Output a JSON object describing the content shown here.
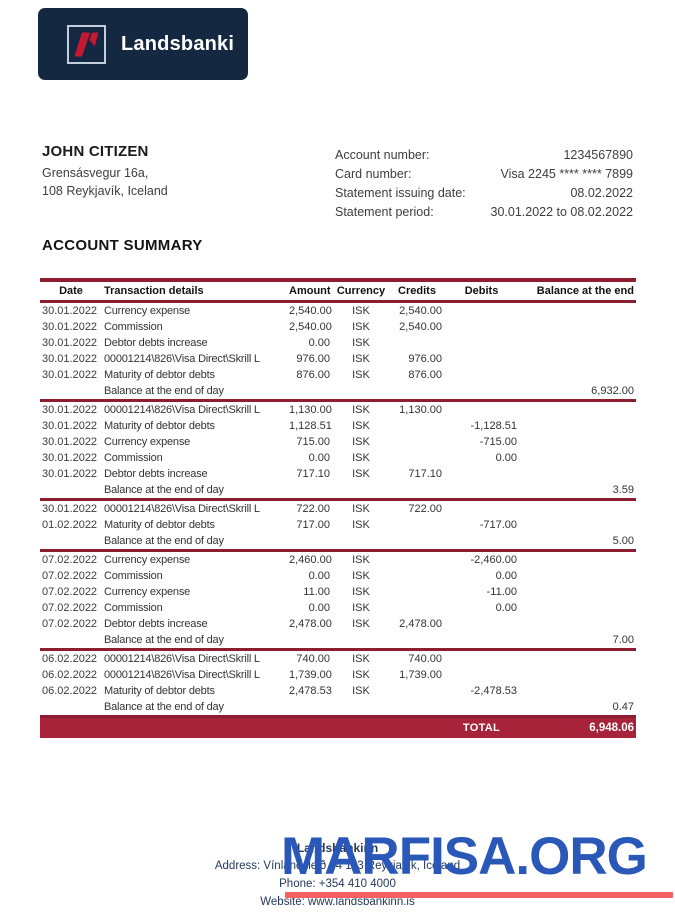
{
  "header": {
    "brand": "Landsbanki"
  },
  "customer": {
    "name": "JOHN CITIZEN",
    "address_line1": "Grensásvegur 16a,",
    "address_line2": "108 Reykjavík, Iceland"
  },
  "account_info": {
    "rows": [
      {
        "label": "Account number:",
        "value": "1234567890"
      },
      {
        "label": "Card number:",
        "value": "Visa 2245 **** **** 7899"
      },
      {
        "label": "Statement issuing date:",
        "value": "08.02.2022"
      },
      {
        "label": "Statement period:",
        "value": "30.01.2022 to 08.02.2022"
      }
    ]
  },
  "summary": {
    "title": "ACCOUNT SUMMARY"
  },
  "table": {
    "columns": [
      "Date",
      "Transaction details",
      "Amount",
      "Currency",
      "Credits",
      "Debits",
      "Balance at the end"
    ],
    "rows": [
      {
        "type": "tx",
        "date": "30.01.2022",
        "details": "Currency expense",
        "amount": "2,540.00",
        "currency": "ISK",
        "credits": "2,540.00",
        "debits": "",
        "balance": ""
      },
      {
        "type": "tx",
        "date": "30.01.2022",
        "details": "Commission",
        "amount": "2,540.00",
        "currency": "ISK",
        "credits": "2,540.00",
        "debits": "",
        "balance": ""
      },
      {
        "type": "tx",
        "date": "30.01.2022",
        "details": "Debtor debts increase",
        "amount": "0.00",
        "currency": "ISK",
        "credits": "",
        "debits": "",
        "balance": ""
      },
      {
        "type": "tx",
        "date": "30.01.2022",
        "details": "00001214\\826\\Visa Direct\\Skrill L",
        "amount": "976.00",
        "currency": "ISK",
        "credits": "976.00",
        "debits": "",
        "balance": ""
      },
      {
        "type": "tx",
        "date": "30.01.2022",
        "details": "Maturity of debtor debts",
        "amount": "876.00",
        "currency": "ISK",
        "credits": "876.00",
        "debits": "",
        "balance": ""
      },
      {
        "type": "balance",
        "date": "",
        "details": "Balance at the end of day",
        "amount": "",
        "currency": "",
        "credits": "",
        "debits": "",
        "balance": "6,932.00"
      },
      {
        "type": "tx",
        "date": "30.01.2022",
        "details": "00001214\\826\\Visa Direct\\Skrill L",
        "amount": "1,130.00",
        "currency": "ISK",
        "credits": "1,130.00",
        "debits": "",
        "balance": ""
      },
      {
        "type": "tx",
        "date": "30.01.2022",
        "details": "Maturity of debtor debts",
        "amount": "1,128.51",
        "currency": "ISK",
        "credits": "",
        "debits": "-1,128.51",
        "balance": ""
      },
      {
        "type": "tx",
        "date": "30.01.2022",
        "details": "Currency expense",
        "amount": "715.00",
        "currency": "ISK",
        "credits": "",
        "debits": "-715.00",
        "balance": ""
      },
      {
        "type": "tx",
        "date": "30.01.2022",
        "details": "Commission",
        "amount": "0.00",
        "currency": "ISK",
        "credits": "",
        "debits": "0.00",
        "balance": ""
      },
      {
        "type": "tx",
        "date": "30.01.2022",
        "details": "Debtor debts increase",
        "amount": "717.10",
        "currency": "ISK",
        "credits": "717.10",
        "debits": "",
        "balance": ""
      },
      {
        "type": "balance",
        "date": "",
        "details": "Balance at the end of day",
        "amount": "",
        "currency": "",
        "credits": "",
        "debits": "",
        "balance": "3.59"
      },
      {
        "type": "tx",
        "date": "30.01.2022",
        "details": "00001214\\826\\Visa Direct\\Skrill L",
        "amount": "722.00",
        "currency": "ISK",
        "credits": "722.00",
        "debits": "",
        "balance": ""
      },
      {
        "type": "tx",
        "date": "01.02.2022",
        "details": "Maturity of debtor debts",
        "amount": "717.00",
        "currency": "ISK",
        "credits": "",
        "debits": "-717.00",
        "balance": ""
      },
      {
        "type": "balance",
        "date": "",
        "details": "Balance at the end of day",
        "amount": "",
        "currency": "",
        "credits": "",
        "debits": "",
        "balance": "5.00"
      },
      {
        "type": "tx",
        "date": "07.02.2022",
        "details": "Currency expense",
        "amount": "2,460.00",
        "currency": "ISK",
        "credits": "",
        "debits": "-2,460.00",
        "balance": ""
      },
      {
        "type": "tx",
        "date": "07.02.2022",
        "details": "Commission",
        "amount": "0.00",
        "currency": "ISK",
        "credits": "",
        "debits": "0.00",
        "balance": ""
      },
      {
        "type": "tx",
        "date": "07.02.2022",
        "details": "Currency expense",
        "amount": "11.00",
        "currency": "ISK",
        "credits": "",
        "debits": "-11.00",
        "balance": ""
      },
      {
        "type": "tx",
        "date": "07.02.2022",
        "details": "Commission",
        "amount": "0.00",
        "currency": "ISK",
        "credits": "",
        "debits": "0.00",
        "balance": ""
      },
      {
        "type": "tx",
        "date": "07.02.2022",
        "details": "Debtor debts increase",
        "amount": "2,478.00",
        "currency": "ISK",
        "credits": "2,478.00",
        "debits": "",
        "balance": ""
      },
      {
        "type": "balance",
        "date": "",
        "details": "Balance at the end of day",
        "amount": "",
        "currency": "",
        "credits": "",
        "debits": "",
        "balance": "7.00"
      },
      {
        "type": "tx",
        "date": "06.02.2022",
        "details": "00001214\\826\\Visa Direct\\Skrill L",
        "amount": "740.00",
        "currency": "ISK",
        "credits": "740.00",
        "debits": "",
        "balance": ""
      },
      {
        "type": "tx",
        "date": "06.02.2022",
        "details": "00001214\\826\\Visa Direct\\Skrill L",
        "amount": "1,739.00",
        "currency": "ISK",
        "credits": "1,739.00",
        "debits": "",
        "balance": ""
      },
      {
        "type": "tx",
        "date": "06.02.2022",
        "details": "Maturity of debtor debts",
        "amount": "2,478.53",
        "currency": "ISK",
        "credits": "",
        "debits": "-2,478.53",
        "balance": ""
      },
      {
        "type": "balance",
        "date": "",
        "details": "Balance at the end of day",
        "amount": "",
        "currency": "",
        "credits": "",
        "debits": "",
        "balance": "0.47"
      }
    ],
    "total_label": "TOTAL",
    "total_value": "6,948.06"
  },
  "footer": {
    "bank_name": "Landsbankinn",
    "address_line": "Address: Vínlandsleið 14 113 Reykjavík, Iceland",
    "phone_line": "Phone: +354 410 4000",
    "website_line": "Website: www.landsbankinn.is"
  },
  "watermark": {
    "text": "MARFISA.ORG"
  },
  "colors": {
    "navy": "#142941",
    "logo_red": "#c41931",
    "table_line": "#8f1d30",
    "total_bar": "#a72339",
    "watermark_blue": "#2a58b8",
    "watermark_underline": "#f4605f"
  }
}
